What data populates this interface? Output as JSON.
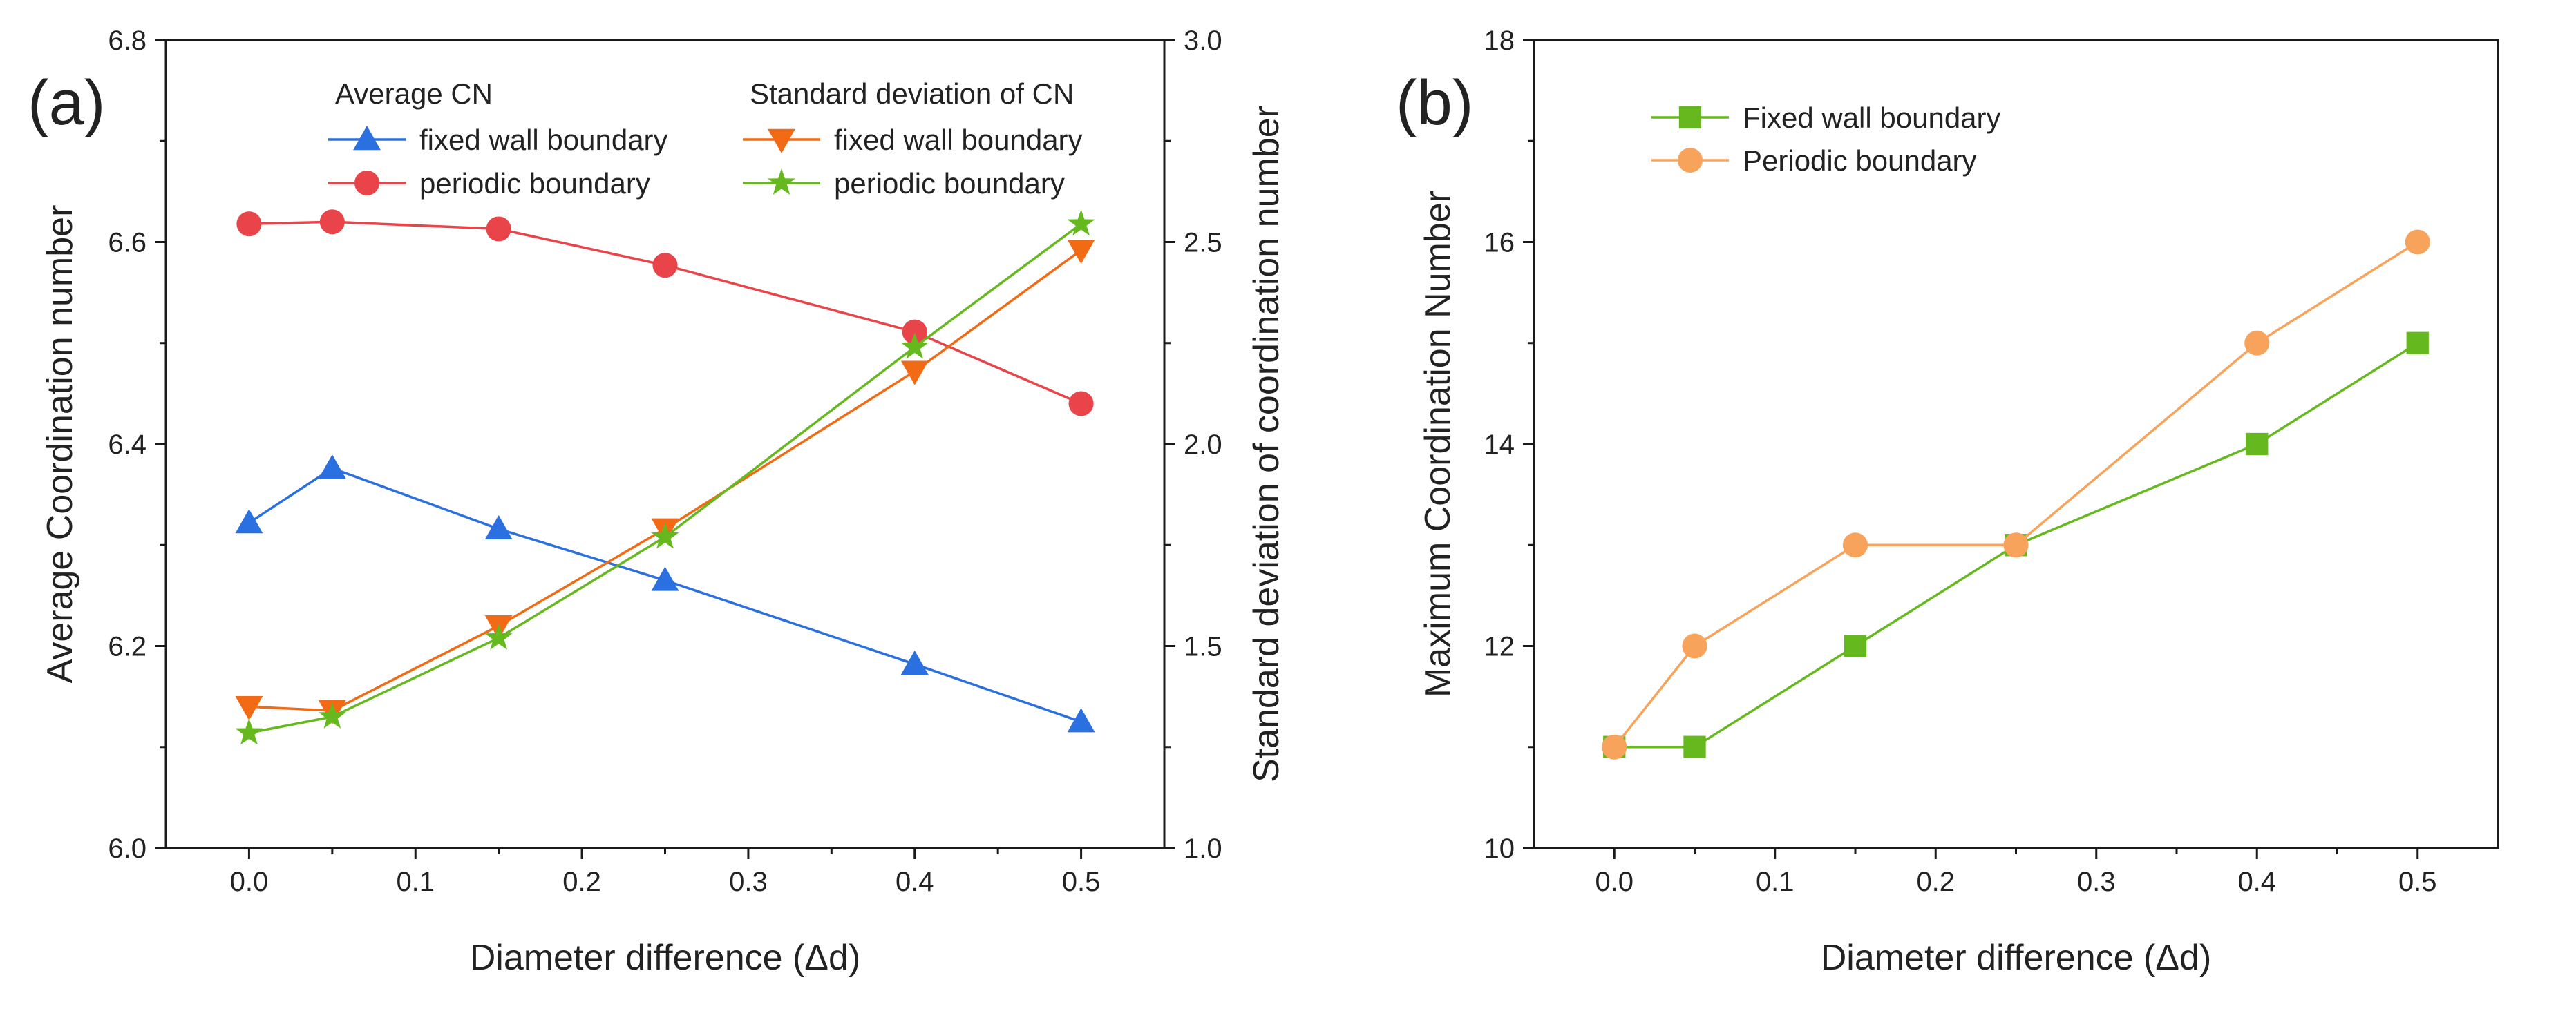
{
  "chart_data": [
    {
      "panel_label": "(a)",
      "type": "line",
      "xlabel": "Diameter difference (Δd)",
      "ylabel_left": "Average Coordination number",
      "ylabel_right": "Standard deviation of coordination number",
      "xlim": [
        -0.05,
        0.55
      ],
      "ylim_left": [
        6.0,
        6.8
      ],
      "ylim_right": [
        1.0,
        3.0
      ],
      "x_ticks": [
        "0.0",
        "0.1",
        "0.2",
        "0.3",
        "0.4",
        "0.5"
      ],
      "x_tick_values": [
        0.0,
        0.1,
        0.2,
        0.3,
        0.4,
        0.5
      ],
      "y_left_ticks": [
        "6.0",
        "6.2",
        "6.4",
        "6.6",
        "6.8"
      ],
      "y_left_tick_values": [
        6.0,
        6.2,
        6.4,
        6.6,
        6.8
      ],
      "y_right_ticks": [
        "1.0",
        "1.5",
        "2.0",
        "2.5",
        "3.0"
      ],
      "y_right_tick_values": [
        1.0,
        1.5,
        2.0,
        2.5,
        3.0
      ],
      "legend_groups": [
        {
          "title": "Average CN"
        },
        {
          "title": "Standard deviation of CN"
        }
      ],
      "series": [
        {
          "name": "fixed wall boundary",
          "group": 0,
          "axis": "left",
          "marker": "triangle-up",
          "color": "#2a70e0",
          "x": [
            0.0,
            0.05,
            0.15,
            0.25,
            0.4,
            0.5
          ],
          "values": [
            6.322,
            6.376,
            6.316,
            6.265,
            6.182,
            6.125
          ]
        },
        {
          "name": "periodic boundary",
          "group": 0,
          "axis": "left",
          "marker": "circle",
          "color": "#e8444a",
          "x": [
            0.0,
            0.05,
            0.15,
            0.25,
            0.4,
            0.5
          ],
          "values": [
            6.618,
            6.62,
            6.613,
            6.577,
            6.511,
            6.44
          ]
        },
        {
          "name": "fixed wall boundary",
          "group": 1,
          "axis": "right",
          "marker": "triangle-down",
          "color": "#f26a14",
          "x": [
            0.0,
            0.05,
            0.15,
            0.25,
            0.4,
            0.5
          ],
          "values": [
            1.35,
            1.34,
            1.55,
            1.79,
            2.18,
            2.48
          ]
        },
        {
          "name": "periodic boundary",
          "group": 1,
          "axis": "right",
          "marker": "star",
          "color": "#66b81f",
          "x": [
            0.0,
            0.05,
            0.15,
            0.25,
            0.4,
            0.5
          ],
          "values": [
            1.285,
            1.325,
            1.52,
            1.77,
            2.24,
            2.545
          ]
        }
      ]
    },
    {
      "panel_label": "(b)",
      "type": "line",
      "xlabel": "Diameter difference (Δd)",
      "ylabel": "Maximum Coordination Number",
      "xlim": [
        -0.05,
        0.55
      ],
      "ylim": [
        10,
        18
      ],
      "x_ticks": [
        "0.0",
        "0.1",
        "0.2",
        "0.3",
        "0.4",
        "0.5"
      ],
      "x_tick_values": [
        0.0,
        0.1,
        0.2,
        0.3,
        0.4,
        0.5
      ],
      "y_ticks": [
        "10",
        "12",
        "14",
        "16",
        "18"
      ],
      "y_tick_values": [
        10,
        12,
        14,
        16,
        18
      ],
      "series": [
        {
          "name": "Fixed wall boundary",
          "marker": "square",
          "color": "#66b81f",
          "x": [
            0.0,
            0.05,
            0.15,
            0.25,
            0.4,
            0.5
          ],
          "values": [
            11,
            11,
            12,
            13,
            14,
            15
          ]
        },
        {
          "name": "Periodic boundary",
          "marker": "circle",
          "color": "#f8a35c",
          "x": [
            0.0,
            0.05,
            0.15,
            0.25,
            0.4,
            0.5
          ],
          "values": [
            11,
            12,
            13,
            13,
            15,
            16
          ]
        }
      ]
    }
  ]
}
